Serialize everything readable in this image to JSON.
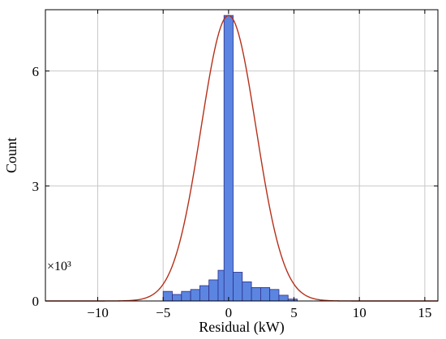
{
  "chart_data": {
    "type": "bar",
    "subtype": "histogram",
    "xlabel": "Residual (kW)",
    "ylabel": "Count",
    "y_multiplier_label": "×10³",
    "xlim": [
      -14,
      16
    ],
    "ylim": [
      0,
      7.6
    ],
    "xticks": [
      -10,
      -5,
      0,
      5,
      10,
      15
    ],
    "xtick_labels": [
      "−10",
      "−5",
      "0",
      "5",
      "10",
      "15"
    ],
    "yticks": [
      0,
      3,
      6
    ],
    "ytick_labels": [
      "0",
      "3",
      "6"
    ],
    "grid": true,
    "bin_width": 0.7,
    "bins": [
      {
        "left": -5.0,
        "value": 0.25
      },
      {
        "left": -4.3,
        "value": 0.17
      },
      {
        "left": -3.6,
        "value": 0.25
      },
      {
        "left": -2.9,
        "value": 0.3
      },
      {
        "left": -2.2,
        "value": 0.4
      },
      {
        "left": -1.5,
        "value": 0.55
      },
      {
        "left": -0.8,
        "value": 0.8
      },
      {
        "left": -0.35,
        "value": 7.45
      },
      {
        "left": 0.35,
        "value": 0.75
      },
      {
        "left": 1.05,
        "value": 0.5
      },
      {
        "left": 1.75,
        "value": 0.35
      },
      {
        "left": 2.45,
        "value": 0.35
      },
      {
        "left": 3.15,
        "value": 0.3
      },
      {
        "left": 3.85,
        "value": 0.15
      },
      {
        "left": 4.55,
        "value": 0.05
      }
    ],
    "fit_curve": {
      "type": "gaussian",
      "mean": 0,
      "sigma": 2.1,
      "peak": 7.45
    },
    "colors": {
      "bar_fill": "#5b85e0",
      "bar_stroke": "#2d2d8a",
      "curve": "#b5301a",
      "grid": "#c8c8c8",
      "axes": "#000000"
    }
  }
}
